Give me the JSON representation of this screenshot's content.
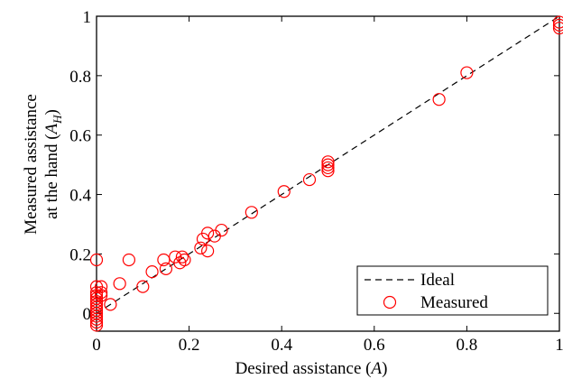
{
  "chart_data": {
    "type": "scatter",
    "title": "",
    "xlabel": "Desired assistance (",
    "xlabel_symbol": "A",
    "xlabel_suffix": ")",
    "ylabel_line1": "Measured assistance",
    "ylabel_line2": "at the hand (",
    "ylabel_symbol": "A",
    "ylabel_subscript": "H",
    "ylabel_suffix": ")",
    "xlim": [
      0,
      1
    ],
    "ylim": [
      -0.06,
      1
    ],
    "xticks": [
      0,
      0.2,
      0.4,
      0.6,
      0.8,
      1
    ],
    "xtick_labels": [
      "0",
      "0.2",
      "0.4",
      "0.6",
      "0.8",
      "1"
    ],
    "yticks": [
      0,
      0.2,
      0.4,
      0.6,
      0.8,
      1
    ],
    "ytick_labels": [
      "0",
      "0.2",
      "0.4",
      "0.6",
      "0.8",
      "1"
    ],
    "grid": false,
    "legend_position": "bottom-right",
    "series": [
      {
        "name": "Ideal",
        "kind": "line",
        "style": "dashed",
        "color": "#000000",
        "x": [
          0,
          1
        ],
        "y": [
          0,
          1
        ]
      },
      {
        "name": "Measured",
        "kind": "markers",
        "marker": "open-circle",
        "color": "#ff0000",
        "points": [
          [
            0,
            0.18
          ],
          [
            0,
            0.09
          ],
          [
            0,
            0.07
          ],
          [
            0,
            0.06
          ],
          [
            0,
            0.05
          ],
          [
            0,
            0.04
          ],
          [
            0,
            0.03
          ],
          [
            0,
            0.02
          ],
          [
            0,
            0.01
          ],
          [
            0,
            0.0
          ],
          [
            0,
            -0.01
          ],
          [
            0,
            -0.02
          ],
          [
            0,
            -0.03
          ],
          [
            0,
            -0.04
          ],
          [
            0.01,
            0.09
          ],
          [
            0.01,
            0.07
          ],
          [
            0.01,
            0.06
          ],
          [
            0.03,
            0.03
          ],
          [
            0.05,
            0.1
          ],
          [
            0.07,
            0.18
          ],
          [
            0.1,
            0.09
          ],
          [
            0.12,
            0.14
          ],
          [
            0.145,
            0.18
          ],
          [
            0.15,
            0.15
          ],
          [
            0.17,
            0.19
          ],
          [
            0.18,
            0.17
          ],
          [
            0.185,
            0.19
          ],
          [
            0.19,
            0.18
          ],
          [
            0.225,
            0.22
          ],
          [
            0.23,
            0.25
          ],
          [
            0.24,
            0.27
          ],
          [
            0.24,
            0.21
          ],
          [
            0.255,
            0.26
          ],
          [
            0.27,
            0.28
          ],
          [
            0.335,
            0.34
          ],
          [
            0.405,
            0.41
          ],
          [
            0.46,
            0.45
          ],
          [
            0.5,
            0.51
          ],
          [
            0.5,
            0.5
          ],
          [
            0.5,
            0.49
          ],
          [
            0.5,
            0.48
          ],
          [
            0.74,
            0.72
          ],
          [
            0.8,
            0.81
          ],
          [
            1.0,
            0.98
          ],
          [
            1.0,
            0.97
          ],
          [
            1.0,
            0.96
          ]
        ]
      }
    ]
  }
}
